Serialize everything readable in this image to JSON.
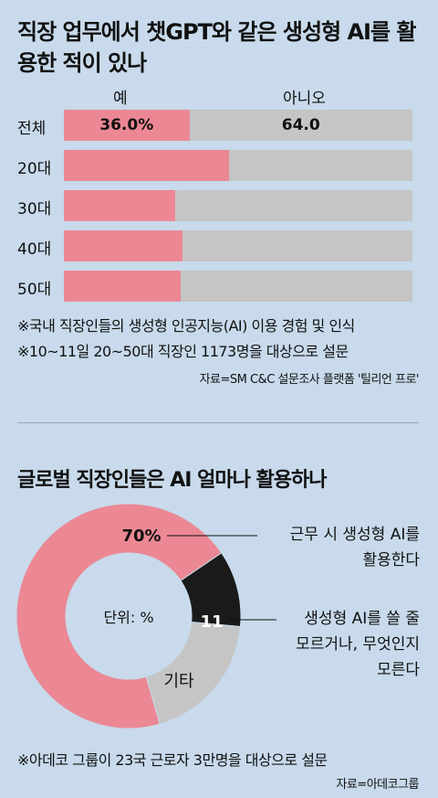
{
  "header": {
    "title": "직장 업무에서 챗GPT와 같은 생성형 AI를 활용한 적이 있나"
  },
  "chart_data": [
    {
      "type": "bar",
      "title": "직장 업무에서 챗GPT와 같은 생성형 AI를 활용한 적이 있나",
      "legend": [
        "예",
        "아니오"
      ],
      "categories": [
        "전체",
        "20대",
        "30대",
        "40대",
        "50대"
      ],
      "series": [
        {
          "name": "예",
          "values": [
            36.0,
            47.5,
            32.0,
            34.0,
            33.5
          ]
        },
        {
          "name": "아니오",
          "values": [
            64.0,
            52.5,
            68.0,
            66.0,
            66.5
          ]
        }
      ],
      "data_labels": {
        "yes": "36.0%",
        "no": "64.0"
      },
      "colors": {
        "yes": "#eb8894",
        "no": "#c5c5c5"
      }
    },
    {
      "type": "pie",
      "title": "글로벌 직장인들은 AI 얼마나 활용하나",
      "unit_label": "단위: %",
      "slices": [
        {
          "label": "근무 시 생성형 AI를 활용한다",
          "value": 70,
          "text": "70%",
          "color": "#eb8894"
        },
        {
          "label": "생성형 AI를 쓸 줄 모르거나, 무엇인지 모른다",
          "value": 11,
          "text": "11",
          "color": "#1a1a1a"
        },
        {
          "label": "기타",
          "value": 19,
          "text": "기타",
          "color": "#c5c5c5"
        }
      ]
    }
  ],
  "notes": {
    "note1": "※국내 직장인들의 생성형 인공지능(AI) 이용 경험 및 인식",
    "note2": "※10~11일 20~50대 직장인 1173명을 대상으로 설문",
    "source1": "자료=SM C&C 설문조사 플랫폼 '틸리언 프로'",
    "note3": "※아데코 그룹이 23국 근로자 3만명을 대상으로 설문",
    "source2": "자료=아데코그룹"
  },
  "callouts": {
    "use_line1": "근무 시 생성형 AI를",
    "use_line2": "활용한다",
    "dontknow_line1": "생성형 AI를 쓸 줄",
    "dontknow_line2": "모르거나, 무엇인지",
    "dontknow_line3": "모른다"
  }
}
